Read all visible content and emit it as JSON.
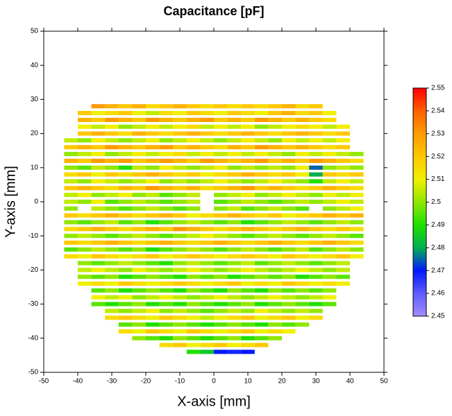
{
  "chart_data": {
    "type": "heatmap",
    "title": "Capacitance [pF]",
    "x_label": "X-axis [mm]",
    "y_label": "Y-axis [mm]",
    "xlim": [
      -50,
      50
    ],
    "ylim": [
      -50,
      50
    ],
    "xticks": [
      -50,
      -40,
      -30,
      -20,
      -10,
      0,
      10,
      20,
      30,
      40,
      50
    ],
    "yticks": [
      -50,
      -40,
      -30,
      -20,
      -10,
      0,
      10,
      20,
      30,
      40,
      50
    ],
    "zlim": [
      2.45,
      2.55
    ],
    "zticks": [
      2.45,
      2.46,
      2.47,
      2.48,
      2.49,
      2.5,
      2.51,
      2.52,
      2.53,
      2.54,
      2.55
    ],
    "colormap": [
      "#a38cff",
      "#5e5cff",
      "#0018ff",
      "#00b050",
      "#20e000",
      "#90e800",
      "#f0f000",
      "#ffc800",
      "#ff9a00",
      "#ff6000",
      "#ff0000"
    ],
    "x": [
      -42,
      -38,
      -34,
      -30,
      -26,
      -22,
      -18,
      -14,
      -10,
      -6,
      -2,
      2,
      6,
      10,
      14,
      18,
      22,
      26,
      30,
      34,
      38,
      42
    ],
    "y": [
      28,
      26,
      24,
      22,
      20,
      18,
      16,
      14,
      12,
      10,
      8,
      6,
      4,
      2,
      0,
      -2,
      -4,
      -6,
      -8,
      -10,
      -12,
      -14,
      -16,
      -18,
      -20,
      -22,
      -24,
      -26,
      -28,
      -30,
      -32,
      -34,
      -36,
      -38,
      -40,
      -42,
      -44
    ],
    "z": [
      [
        null,
        null,
        2.53,
        2.525,
        2.52,
        2.525,
        2.515,
        2.52,
        2.525,
        2.52,
        2.515,
        2.52,
        2.515,
        2.52,
        2.515,
        2.52,
        2.525,
        2.515,
        2.52,
        null,
        null,
        null
      ],
      [
        null,
        2.52,
        2.51,
        2.515,
        2.52,
        2.51,
        2.505,
        2.515,
        2.51,
        2.52,
        2.515,
        2.51,
        2.52,
        2.515,
        2.51,
        2.52,
        2.525,
        2.515,
        2.52,
        2.51,
        null,
        null
      ],
      [
        null,
        2.525,
        2.52,
        2.53,
        2.525,
        2.52,
        2.53,
        2.525,
        2.52,
        2.525,
        2.53,
        2.52,
        2.525,
        2.52,
        2.53,
        2.525,
        2.52,
        2.525,
        2.52,
        2.515,
        null,
        null
      ],
      [
        null,
        2.51,
        2.505,
        2.51,
        2.5,
        2.505,
        2.51,
        2.505,
        2.51,
        2.515,
        2.505,
        2.51,
        2.505,
        2.51,
        2.5,
        2.505,
        2.51,
        2.515,
        2.51,
        2.505,
        2.51,
        null
      ],
      [
        null,
        2.52,
        2.525,
        2.52,
        2.515,
        2.525,
        2.52,
        2.515,
        2.52,
        2.525,
        2.52,
        2.515,
        2.52,
        2.525,
        2.52,
        2.515,
        2.52,
        2.525,
        2.52,
        2.515,
        2.52,
        null
      ],
      [
        2.505,
        2.5,
        2.51,
        2.505,
        2.5,
        2.505,
        2.51,
        2.5,
        2.505,
        2.51,
        2.505,
        2.5,
        2.505,
        2.51,
        2.505,
        2.5,
        2.51,
        2.505,
        2.51,
        2.505,
        2.51,
        null
      ],
      [
        2.52,
        2.525,
        2.52,
        2.53,
        2.525,
        2.52,
        2.525,
        2.53,
        2.52,
        2.525,
        2.52,
        2.515,
        2.525,
        2.52,
        2.53,
        2.525,
        2.52,
        2.525,
        2.52,
        2.515,
        2.52,
        null
      ],
      [
        2.5,
        2.505,
        2.51,
        2.5,
        2.505,
        2.51,
        2.505,
        2.51,
        2.515,
        2.505,
        2.51,
        2.505,
        2.51,
        2.505,
        2.51,
        2.505,
        2.5,
        2.51,
        2.505,
        2.51,
        2.505,
        2.5
      ],
      [
        2.525,
        2.52,
        2.53,
        2.525,
        2.53,
        2.52,
        2.525,
        2.53,
        2.525,
        2.52,
        2.53,
        2.525,
        2.52,
        2.525,
        2.53,
        2.52,
        2.525,
        2.52,
        2.53,
        2.525,
        2.52,
        2.515
      ],
      [
        2.5,
        2.495,
        2.505,
        2.5,
        2.49,
        2.505,
        2.5,
        2.51,
        2.505,
        2.5,
        2.505,
        2.51,
        2.5,
        2.505,
        2.5,
        2.505,
        2.5,
        2.51,
        2.475,
        2.5,
        2.505,
        2.5
      ],
      [
        2.515,
        2.52,
        2.51,
        2.52,
        2.515,
        2.52,
        2.525,
        2.52,
        2.515,
        2.52,
        2.51,
        2.515,
        2.52,
        2.525,
        2.52,
        2.515,
        2.52,
        2.51,
        2.48,
        2.52,
        2.515,
        2.52
      ],
      [
        2.505,
        2.5,
        2.51,
        2.505,
        2.5,
        2.505,
        2.51,
        2.5,
        2.505,
        2.5,
        2.505,
        2.51,
        2.505,
        2.5,
        2.505,
        2.51,
        2.505,
        2.5,
        2.49,
        2.505,
        2.51,
        2.505
      ],
      [
        2.52,
        2.525,
        2.52,
        2.515,
        2.525,
        2.52,
        2.53,
        2.525,
        2.52,
        2.525,
        2.515,
        2.52,
        2.525,
        2.53,
        2.52,
        2.525,
        2.52,
        2.515,
        2.52,
        2.525,
        2.52,
        2.515
      ],
      [
        2.505,
        2.51,
        2.5,
        2.505,
        2.51,
        2.5,
        2.505,
        2.495,
        2.5,
        2.505,
        null,
        2.5,
        2.505,
        2.51,
        2.5,
        2.505,
        2.51,
        2.505,
        2.5,
        2.51,
        2.505,
        2.51
      ],
      [
        2.505,
        2.5,
        2.51,
        2.495,
        2.5,
        2.505,
        2.5,
        2.495,
        2.5,
        2.505,
        null,
        2.495,
        2.5,
        2.505,
        2.5,
        2.495,
        2.5,
        2.505,
        2.5,
        2.505,
        2.51,
        2.505
      ],
      [
        2.5,
        null,
        2.505,
        2.5,
        2.495,
        2.5,
        2.505,
        2.5,
        2.495,
        2.5,
        null,
        2.5,
        2.505,
        2.495,
        2.5,
        2.505,
        2.5,
        2.495,
        null,
        2.5,
        2.505,
        2.51
      ],
      [
        2.52,
        2.515,
        2.52,
        2.525,
        2.52,
        2.515,
        2.52,
        2.525,
        2.52,
        2.51,
        2.515,
        2.52,
        2.525,
        2.52,
        2.515,
        2.52,
        2.51,
        2.515,
        2.52,
        2.525,
        2.52,
        2.525
      ],
      [
        2.5,
        2.495,
        2.5,
        2.505,
        2.495,
        2.5,
        2.49,
        2.495,
        2.5,
        2.505,
        2.5,
        2.495,
        2.5,
        2.49,
        2.495,
        2.5,
        2.505,
        2.5,
        2.495,
        2.5,
        2.505,
        2.5
      ],
      [
        2.515,
        2.52,
        2.525,
        2.52,
        2.515,
        2.52,
        2.525,
        2.52,
        2.53,
        2.525,
        2.52,
        2.515,
        2.52,
        2.525,
        2.52,
        2.515,
        2.52,
        2.525,
        2.52,
        2.515,
        2.52,
        2.515
      ],
      [
        2.5,
        2.505,
        2.5,
        2.495,
        2.5,
        2.505,
        2.5,
        2.495,
        2.5,
        2.505,
        2.51,
        2.505,
        2.5,
        2.495,
        2.5,
        2.505,
        2.5,
        2.495,
        2.5,
        2.505,
        2.5,
        2.495
      ],
      [
        2.52,
        2.515,
        2.52,
        2.525,
        2.52,
        2.515,
        2.52,
        2.525,
        2.52,
        2.515,
        2.52,
        2.525,
        2.52,
        2.515,
        2.52,
        2.525,
        2.52,
        2.515,
        2.52,
        2.525,
        2.52,
        2.515
      ],
      [
        2.495,
        2.5,
        2.505,
        2.5,
        2.495,
        2.5,
        2.49,
        2.495,
        2.5,
        2.505,
        2.5,
        2.495,
        2.5,
        2.505,
        2.5,
        2.495,
        2.5,
        2.505,
        2.495,
        2.5,
        2.505,
        2.5
      ],
      [
        2.515,
        2.51,
        2.52,
        2.515,
        2.51,
        2.515,
        2.52,
        2.51,
        2.515,
        2.52,
        2.515,
        2.51,
        2.515,
        2.52,
        2.515,
        2.51,
        2.52,
        2.515,
        2.51,
        2.515,
        2.52,
        2.51
      ],
      [
        null,
        2.5,
        2.495,
        2.5,
        2.505,
        2.5,
        2.495,
        2.49,
        2.5,
        2.505,
        2.5,
        2.495,
        2.5,
        2.505,
        2.495,
        2.5,
        2.505,
        2.5,
        2.495,
        2.5,
        2.505,
        null
      ],
      [
        null,
        2.505,
        2.51,
        2.505,
        2.5,
        2.51,
        2.505,
        2.5,
        2.505,
        2.51,
        2.505,
        2.5,
        2.505,
        2.51,
        2.505,
        2.5,
        2.505,
        2.51,
        2.505,
        2.5,
        2.505,
        null
      ],
      [
        null,
        2.5,
        2.495,
        2.5,
        2.49,
        2.495,
        2.5,
        2.495,
        2.49,
        2.5,
        2.495,
        2.5,
        2.49,
        2.495,
        2.5,
        2.495,
        2.5,
        2.49,
        2.495,
        2.5,
        2.495,
        null
      ],
      [
        null,
        2.51,
        2.515,
        2.51,
        2.52,
        2.515,
        2.51,
        2.515,
        2.52,
        2.515,
        2.51,
        2.515,
        2.52,
        2.51,
        2.515,
        2.51,
        2.52,
        2.515,
        2.51,
        2.515,
        2.51,
        null
      ],
      [
        null,
        null,
        2.495,
        2.5,
        2.49,
        2.495,
        2.5,
        2.495,
        2.49,
        2.5,
        2.495,
        2.49,
        2.5,
        2.495,
        2.49,
        2.5,
        2.495,
        2.5,
        2.495,
        2.5,
        null,
        null
      ],
      [
        null,
        null,
        2.51,
        2.505,
        2.51,
        2.5,
        2.505,
        2.51,
        2.505,
        2.5,
        2.505,
        2.51,
        2.505,
        2.5,
        2.505,
        2.51,
        2.505,
        2.5,
        2.505,
        2.51,
        null,
        null
      ],
      [
        null,
        null,
        2.495,
        2.49,
        2.495,
        2.5,
        2.49,
        2.495,
        2.49,
        2.5,
        2.495,
        2.49,
        2.495,
        2.5,
        2.49,
        2.495,
        2.5,
        2.495,
        2.49,
        2.495,
        null,
        null
      ],
      [
        null,
        null,
        null,
        2.505,
        2.5,
        2.505,
        2.51,
        2.5,
        2.505,
        2.5,
        2.495,
        2.5,
        2.505,
        2.5,
        2.51,
        2.505,
        2.5,
        2.505,
        2.5,
        null,
        null,
        null
      ],
      [
        null,
        null,
        null,
        2.515,
        2.52,
        2.515,
        2.51,
        2.52,
        2.515,
        2.51,
        2.505,
        2.51,
        2.515,
        2.52,
        2.51,
        2.515,
        2.52,
        2.51,
        2.515,
        null,
        null,
        null
      ],
      [
        null,
        null,
        null,
        null,
        2.495,
        2.5,
        2.49,
        2.495,
        2.5,
        2.495,
        2.49,
        2.495,
        2.5,
        2.495,
        2.49,
        2.5,
        2.495,
        2.5,
        null,
        null,
        null,
        null
      ],
      [
        null,
        null,
        null,
        null,
        2.515,
        2.51,
        2.52,
        2.515,
        2.51,
        2.52,
        2.515,
        2.51,
        2.515,
        2.52,
        2.51,
        2.515,
        2.51,
        null,
        null,
        null,
        null,
        null
      ],
      [
        null,
        null,
        null,
        null,
        null,
        2.5,
        2.495,
        2.49,
        2.5,
        2.495,
        2.49,
        2.495,
        2.5,
        2.49,
        2.495,
        2.5,
        null,
        null,
        null,
        null,
        null,
        null
      ],
      [
        null,
        null,
        null,
        null,
        null,
        null,
        null,
        2.515,
        2.52,
        2.51,
        2.515,
        2.52,
        2.51,
        2.515,
        2.52,
        null,
        null,
        null,
        null,
        null,
        null,
        null
      ],
      [
        null,
        null,
        null,
        null,
        null,
        null,
        null,
        null,
        null,
        2.49,
        2.485,
        2.47,
        2.468,
        2.47,
        null,
        null,
        null,
        null,
        null,
        null,
        null,
        null
      ]
    ]
  }
}
